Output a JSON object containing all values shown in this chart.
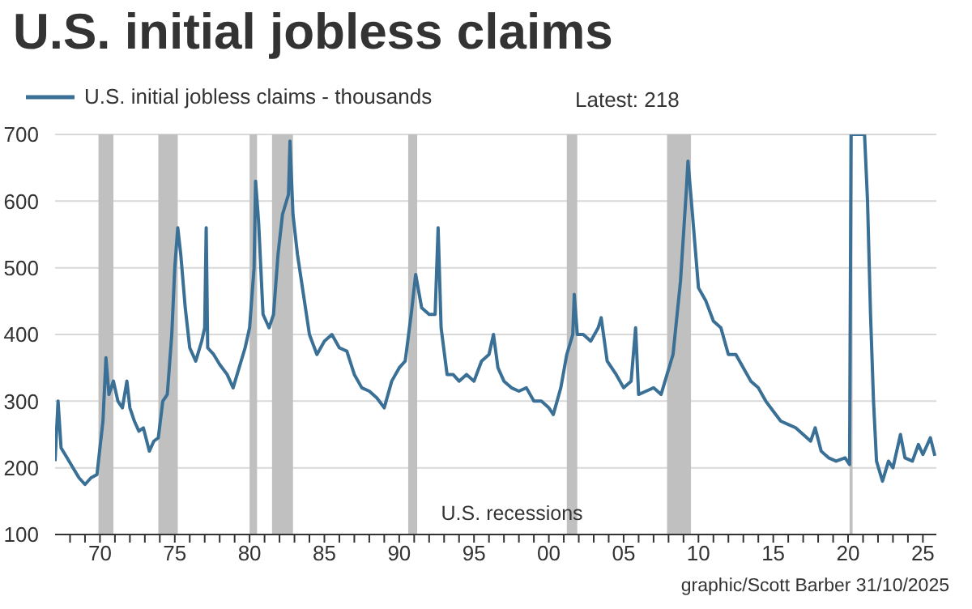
{
  "chart_data": {
    "type": "line",
    "title": "U.S. initial jobless claims",
    "legend": "top left",
    "grid": "y",
    "line_style": "solid",
    "marker": "none",
    "x": [
      1967.0,
      1967.2,
      1967.4,
      1967.8,
      1968.2,
      1968.6,
      1969.0,
      1969.4,
      1969.8,
      1970.2,
      1970.4,
      1970.6,
      1970.9,
      1971.2,
      1971.5,
      1971.8,
      1972.0,
      1972.3,
      1972.6,
      1972.9,
      1973.3,
      1973.6,
      1973.9,
      1974.2,
      1974.5,
      1974.8,
      1975.0,
      1975.2,
      1975.4,
      1975.7,
      1976.0,
      1976.4,
      1976.8,
      1977.0,
      1977.1,
      1977.2,
      1977.6,
      1978.0,
      1978.5,
      1978.9,
      1979.3,
      1979.7,
      1980.0,
      1980.3,
      1980.4,
      1980.6,
      1980.9,
      1981.3,
      1981.6,
      1981.9,
      1982.2,
      1982.6,
      1982.7,
      1982.9,
      1983.2,
      1983.6,
      1984.0,
      1984.5,
      1985.0,
      1985.5,
      1986.0,
      1986.5,
      1987.0,
      1987.5,
      1988.0,
      1988.5,
      1989.0,
      1989.5,
      1990.0,
      1990.4,
      1990.8,
      1991.1,
      1991.5,
      1992.0,
      1992.4,
      1992.6,
      1992.8,
      1993.2,
      1993.6,
      1994.0,
      1994.5,
      1995.0,
      1995.5,
      1996.0,
      1996.3,
      1996.6,
      1997.0,
      1997.5,
      1998.0,
      1998.5,
      1999.0,
      1999.5,
      2000.0,
      2000.3,
      2000.8,
      2001.2,
      2001.6,
      2001.7,
      2001.9,
      2002.3,
      2002.8,
      2003.3,
      2003.5,
      2003.9,
      2004.5,
      2005.0,
      2005.5,
      2005.8,
      2006.0,
      2006.5,
      2007.0,
      2007.5,
      2007.9,
      2008.3,
      2008.8,
      2009.2,
      2009.3,
      2009.6,
      2010.0,
      2010.5,
      2011.0,
      2011.5,
      2012.0,
      2012.5,
      2013.0,
      2013.5,
      2014.0,
      2014.5,
      2015.0,
      2015.5,
      2016.0,
      2016.5,
      2017.0,
      2017.5,
      2017.8,
      2018.2,
      2018.7,
      2019.2,
      2019.8,
      2020.1,
      2020.2,
      2021.1,
      2021.3,
      2021.5,
      2021.7,
      2021.9,
      2022.3,
      2022.7,
      2023.0,
      2023.5,
      2023.8,
      2024.3,
      2024.7,
      2025.0,
      2025.5,
      2025.8
    ],
    "series": [
      {
        "name": "U.S. initial jobless claims - thousands",
        "color": "#3a6f96",
        "values": [
          210,
          300,
          230,
          215,
          200,
          185,
          175,
          185,
          190,
          270,
          365,
          310,
          330,
          300,
          290,
          330,
          290,
          270,
          255,
          260,
          225,
          240,
          245,
          300,
          310,
          400,
          500,
          560,
          520,
          440,
          380,
          360,
          390,
          410,
          560,
          380,
          370,
          355,
          340,
          320,
          350,
          380,
          410,
          500,
          630,
          570,
          430,
          410,
          430,
          520,
          580,
          610,
          690,
          580,
          520,
          460,
          400,
          370,
          390,
          400,
          380,
          375,
          340,
          320,
          315,
          305,
          290,
          330,
          350,
          360,
          430,
          490,
          440,
          430,
          430,
          560,
          410,
          340,
          340,
          330,
          340,
          330,
          360,
          370,
          400,
          350,
          330,
          320,
          315,
          320,
          300,
          300,
          290,
          280,
          320,
          370,
          400,
          460,
          400,
          400,
          390,
          410,
          425,
          360,
          340,
          320,
          330,
          410,
          310,
          315,
          320,
          310,
          340,
          370,
          480,
          620,
          660,
          580,
          470,
          450,
          420,
          410,
          370,
          370,
          350,
          330,
          320,
          300,
          285,
          270,
          265,
          260,
          250,
          240,
          260,
          225,
          215,
          210,
          215,
          205,
          700,
          700,
          600,
          430,
          300,
          210,
          180,
          210,
          200,
          250,
          215,
          210,
          235,
          220,
          245,
          218
        ]
      }
    ],
    "xlim": [
      1967,
      2025.9
    ],
    "xticks": [
      {
        "value": 1968,
        "label": null
      },
      {
        "value": 1969,
        "label": null
      },
      {
        "value": 1970,
        "label": "70"
      },
      {
        "value": 1971,
        "label": null
      },
      {
        "value": 1972,
        "label": null
      },
      {
        "value": 1973,
        "label": null
      },
      {
        "value": 1974,
        "label": null
      },
      {
        "value": 1975,
        "label": "75"
      },
      {
        "value": 1976,
        "label": null
      },
      {
        "value": 1977,
        "label": null
      },
      {
        "value": 1978,
        "label": null
      },
      {
        "value": 1979,
        "label": null
      },
      {
        "value": 1980,
        "label": "80"
      },
      {
        "value": 1981,
        "label": null
      },
      {
        "value": 1982,
        "label": null
      },
      {
        "value": 1983,
        "label": null
      },
      {
        "value": 1984,
        "label": null
      },
      {
        "value": 1985,
        "label": "85"
      },
      {
        "value": 1986,
        "label": null
      },
      {
        "value": 1987,
        "label": null
      },
      {
        "value": 1988,
        "label": null
      },
      {
        "value": 1989,
        "label": null
      },
      {
        "value": 1990,
        "label": "90"
      },
      {
        "value": 1991,
        "label": null
      },
      {
        "value": 1992,
        "label": null
      },
      {
        "value": 1993,
        "label": null
      },
      {
        "value": 1994,
        "label": null
      },
      {
        "value": 1995,
        "label": "95"
      },
      {
        "value": 1996,
        "label": null
      },
      {
        "value": 1997,
        "label": null
      },
      {
        "value": 1998,
        "label": null
      },
      {
        "value": 1999,
        "label": null
      },
      {
        "value": 2000,
        "label": "00"
      },
      {
        "value": 2001,
        "label": null
      },
      {
        "value": 2002,
        "label": null
      },
      {
        "value": 2003,
        "label": null
      },
      {
        "value": 2004,
        "label": null
      },
      {
        "value": 2005,
        "label": "05"
      },
      {
        "value": 2006,
        "label": null
      },
      {
        "value": 2007,
        "label": null
      },
      {
        "value": 2008,
        "label": null
      },
      {
        "value": 2009,
        "label": null
      },
      {
        "value": 2010,
        "label": "10"
      },
      {
        "value": 2011,
        "label": null
      },
      {
        "value": 2012,
        "label": null
      },
      {
        "value": 2013,
        "label": null
      },
      {
        "value": 2014,
        "label": null
      },
      {
        "value": 2015,
        "label": "15"
      },
      {
        "value": 2016,
        "label": null
      },
      {
        "value": 2017,
        "label": null
      },
      {
        "value": 2018,
        "label": null
      },
      {
        "value": 2019,
        "label": null
      },
      {
        "value": 2020,
        "label": "20"
      },
      {
        "value": 2021,
        "label": null
      },
      {
        "value": 2022,
        "label": null
      },
      {
        "value": 2023,
        "label": null
      },
      {
        "value": 2024,
        "label": null
      },
      {
        "value": 2025,
        "label": "25"
      }
    ],
    "ylim": [
      100,
      700
    ],
    "yticks": [
      100,
      200,
      300,
      400,
      500,
      600,
      700
    ],
    "bands": [
      {
        "axis": "x",
        "from": 1969.9,
        "to": 1970.9,
        "color": "#c0c0c0"
      },
      {
        "axis": "x",
        "from": 1973.9,
        "to": 1975.2,
        "color": "#c0c0c0"
      },
      {
        "axis": "x",
        "from": 1980.0,
        "to": 1980.5,
        "color": "#c0c0c0"
      },
      {
        "axis": "x",
        "from": 1981.5,
        "to": 1982.9,
        "color": "#c0c0c0"
      },
      {
        "axis": "x",
        "from": 1990.6,
        "to": 1991.2,
        "color": "#c0c0c0"
      },
      {
        "axis": "x",
        "from": 2001.2,
        "to": 2001.9,
        "color": "#c0c0c0"
      },
      {
        "axis": "x",
        "from": 2007.9,
        "to": 2009.5,
        "color": "#c0c0c0"
      },
      {
        "axis": "x",
        "from": 2020.1,
        "to": 2020.3,
        "color": "#c0c0c0"
      }
    ],
    "annotations": [
      "Latest: 218",
      "U.S. recessions",
      "graphic/Scott Barber 31/10/2025"
    ]
  }
}
